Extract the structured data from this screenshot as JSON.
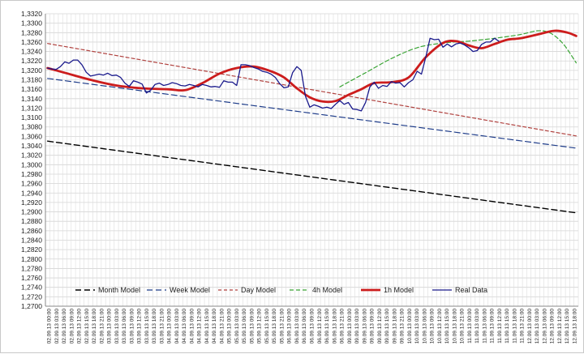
{
  "chart_data": {
    "type": "line",
    "title": "",
    "xlabel": "",
    "ylabel": "",
    "ylim": [
      1.27,
      1.332
    ],
    "ytick_step": 0.002,
    "ytick_labels": [
      "1,2700",
      "1,2720",
      "1,2740",
      "1,2760",
      "1,2780",
      "1,2800",
      "1,2820",
      "1,2840",
      "1,2860",
      "1,2880",
      "1,2900",
      "1,2920",
      "1,2940",
      "1,2960",
      "1,2980",
      "1,3000",
      "1,3020",
      "1,3040",
      "1,3060",
      "1,3080",
      "1,3100",
      "1,3120",
      "1,3140",
      "1,3160",
      "1,3180",
      "1,3200",
      "1,3220",
      "1,3240",
      "1,3260",
      "1,3280",
      "1,3300",
      "1,3320"
    ],
    "x_count": 124,
    "x_tick_labels": [
      "02.09.13 00:00",
      "02.09.13 03:00",
      "02.09.13 06:00",
      "02.09.13 09:00",
      "02.09.13 12:00",
      "02.09.13 15:00",
      "02.09.13 18:00",
      "02.09.13 21:00",
      "03.09.13 00:00",
      "03.09.13 03:00",
      "03.09.13 06:00",
      "03.09.13 09:00",
      "03.09.13 12:00",
      "03.09.13 15:00",
      "03.09.13 18:00",
      "03.09.13 21:00",
      "04.09.13 00:00",
      "04.09.13 03:00",
      "04.09.13 06:00",
      "04.09.13 09:00",
      "04.09.13 12:00",
      "04.09.13 15:00",
      "04.09.13 18:00",
      "04.09.13 21:00",
      "05.09.13 00:00",
      "05.09.13 03:00",
      "05.09.13 06:00",
      "05.09.13 09:00",
      "05.09.13 12:00",
      "05.09.13 15:00",
      "05.09.13 18:00",
      "05.09.13 21:00",
      "06.09.13 00:00",
      "06.09.13 03:00",
      "06.09.13 06:00",
      "06.09.13 09:00",
      "06.09.13 12:00",
      "06.09.13 15:00",
      "06.09.13 18:00",
      "06.09.13 21:00",
      "09.09.13 00:00",
      "09.09.13 03:00",
      "09.09.13 06:00",
      "09.09.13 09:00",
      "09.09.13 12:00",
      "09.09.13 15:00",
      "09.09.13 18:00",
      "09.09.13 21:00",
      "10.09.13 00:00",
      "10.09.13 03:00",
      "10.09.13 06:00",
      "10.09.13 09:00",
      "10.09.13 12:00",
      "10.09.13 15:00",
      "10.09.13 18:00",
      "10.09.13 21:00",
      "11.09.13 00:00",
      "11.09.13 03:00",
      "11.09.13 06:00",
      "11.09.13 09:00",
      "11.09.13 12:00",
      "11.09.13 15:00",
      "11.09.13 18:00",
      "11.09.13 21:00",
      "12.09.13 00:00",
      "12.09.13 03:00",
      "12.09.13 06:00",
      "12.09.13 09:00",
      "12.09.13 12:00",
      "12.09.13 15:00",
      "12.09.13 18:00"
    ],
    "legend_position": "bottom",
    "grid": true,
    "series": [
      {
        "name": "Month Model",
        "color": "#000000",
        "dash": "7,4",
        "width": 1.4,
        "points": [
          [
            0,
            1.305
          ],
          [
            123,
            1.2898
          ]
        ]
      },
      {
        "name": "Week Model",
        "color": "#1f3d8a",
        "dash": "7,4",
        "width": 1.2,
        "points": [
          [
            0,
            1.3183
          ],
          [
            123,
            1.3035
          ]
        ]
      },
      {
        "name": "Day Model",
        "color": "#b0413e",
        "dash": "4,3",
        "width": 1.2,
        "points": [
          [
            0,
            1.3257
          ],
          [
            123,
            1.3061
          ]
        ]
      },
      {
        "name": "4h Model",
        "color": "#3aa535",
        "dash": "5,3",
        "width": 1.2,
        "points": [
          [
            68,
            1.3165
          ],
          [
            74,
            1.3195
          ],
          [
            80,
            1.3225
          ],
          [
            86,
            1.3248
          ],
          [
            92,
            1.3258
          ],
          [
            98,
            1.3262
          ],
          [
            104,
            1.3268
          ],
          [
            110,
            1.3276
          ],
          [
            114,
            1.3284
          ],
          [
            117,
            1.3279
          ],
          [
            120,
            1.3256
          ],
          [
            123,
            1.3216
          ]
        ]
      },
      {
        "name": "1h Model",
        "color": "#cc1c1c",
        "dash": "",
        "width": 2.8,
        "points": [
          [
            0,
            1.3205
          ],
          [
            4,
            1.3195
          ],
          [
            10,
            1.318
          ],
          [
            16,
            1.3168
          ],
          [
            22,
            1.3162
          ],
          [
            28,
            1.316
          ],
          [
            32,
            1.3158
          ],
          [
            36,
            1.3173
          ],
          [
            40,
            1.3193
          ],
          [
            44,
            1.3205
          ],
          [
            48,
            1.3208
          ],
          [
            52,
            1.3198
          ],
          [
            55,
            1.3185
          ],
          [
            58,
            1.3162
          ],
          [
            61,
            1.3143
          ],
          [
            64,
            1.3134
          ],
          [
            67,
            1.3135
          ],
          [
            70,
            1.3148
          ],
          [
            73,
            1.316
          ],
          [
            76,
            1.3173
          ],
          [
            80,
            1.3175
          ],
          [
            84,
            1.3185
          ],
          [
            88,
            1.3228
          ],
          [
            92,
            1.3258
          ],
          [
            95,
            1.3262
          ],
          [
            98,
            1.3253
          ],
          [
            101,
            1.3247
          ],
          [
            104,
            1.3256
          ],
          [
            107,
            1.3265
          ],
          [
            110,
            1.3268
          ],
          [
            114,
            1.3276
          ],
          [
            118,
            1.3284
          ],
          [
            121,
            1.328
          ],
          [
            123,
            1.3273
          ]
        ]
      },
      {
        "name": "Real Data",
        "color": "#1a1a8c",
        "dash": "",
        "width": 1.3,
        "points": [
          [
            0,
            1.3205
          ],
          [
            1,
            1.3203
          ],
          [
            2,
            1.3202
          ],
          [
            3,
            1.3208
          ],
          [
            4,
            1.3218
          ],
          [
            5,
            1.3215
          ],
          [
            6,
            1.3222
          ],
          [
            7,
            1.3222
          ],
          [
            8,
            1.3212
          ],
          [
            9,
            1.3196
          ],
          [
            10,
            1.3188
          ],
          [
            11,
            1.319
          ],
          [
            12,
            1.3192
          ],
          [
            13,
            1.319
          ],
          [
            14,
            1.3194
          ],
          [
            15,
            1.3189
          ],
          [
            16,
            1.319
          ],
          [
            17,
            1.3185
          ],
          [
            18,
            1.3173
          ],
          [
            19,
            1.3166
          ],
          [
            20,
            1.3178
          ],
          [
            21,
            1.3175
          ],
          [
            22,
            1.3171
          ],
          [
            23,
            1.3152
          ],
          [
            24,
            1.3158
          ],
          [
            25,
            1.317
          ],
          [
            26,
            1.3173
          ],
          [
            27,
            1.3168
          ],
          [
            28,
            1.317
          ],
          [
            29,
            1.3174
          ],
          [
            30,
            1.3172
          ],
          [
            31,
            1.3168
          ],
          [
            32,
            1.3167
          ],
          [
            33,
            1.317
          ],
          [
            34,
            1.3168
          ],
          [
            35,
            1.3165
          ],
          [
            36,
            1.317
          ],
          [
            37,
            1.3168
          ],
          [
            38,
            1.3165
          ],
          [
            39,
            1.3166
          ],
          [
            40,
            1.3164
          ],
          [
            41,
            1.3178
          ],
          [
            42,
            1.3175
          ],
          [
            43,
            1.3175
          ],
          [
            44,
            1.3168
          ],
          [
            45,
            1.3212
          ],
          [
            46,
            1.3212
          ],
          [
            47,
            1.321
          ],
          [
            48,
            1.3206
          ],
          [
            49,
            1.3203
          ],
          [
            50,
            1.3198
          ],
          [
            51,
            1.3196
          ],
          [
            52,
            1.3192
          ],
          [
            53,
            1.3185
          ],
          [
            54,
            1.3172
          ],
          [
            55,
            1.3163
          ],
          [
            56,
            1.3165
          ],
          [
            57,
            1.3195
          ],
          [
            58,
            1.3208
          ],
          [
            59,
            1.32
          ],
          [
            60,
            1.3145
          ],
          [
            61,
            1.3122
          ],
          [
            62,
            1.3127
          ],
          [
            63,
            1.3124
          ],
          [
            64,
            1.312
          ],
          [
            65,
            1.3122
          ],
          [
            66,
            1.3119
          ],
          [
            67,
            1.3128
          ],
          [
            68,
            1.3136
          ],
          [
            69,
            1.3128
          ],
          [
            70,
            1.3132
          ],
          [
            71,
            1.3118
          ],
          [
            72,
            1.3117
          ],
          [
            73,
            1.3114
          ],
          [
            74,
            1.3132
          ],
          [
            75,
            1.3165
          ],
          [
            76,
            1.3175
          ],
          [
            77,
            1.3162
          ],
          [
            78,
            1.3168
          ],
          [
            79,
            1.3166
          ],
          [
            80,
            1.3176
          ],
          [
            81,
            1.3173
          ],
          [
            82,
            1.3174
          ],
          [
            83,
            1.3165
          ],
          [
            84,
            1.3174
          ],
          [
            85,
            1.318
          ],
          [
            86,
            1.3198
          ],
          [
            87,
            1.3192
          ],
          [
            88,
            1.3228
          ],
          [
            89,
            1.3268
          ],
          [
            90,
            1.3265
          ],
          [
            91,
            1.3266
          ],
          [
            92,
            1.3249
          ],
          [
            93,
            1.3256
          ],
          [
            94,
            1.325
          ],
          [
            95,
            1.3256
          ],
          [
            96,
            1.3258
          ],
          [
            97,
            1.3254
          ],
          [
            98,
            1.3248
          ],
          [
            99,
            1.324
          ],
          [
            100,
            1.3242
          ],
          [
            101,
            1.3255
          ],
          [
            102,
            1.326
          ],
          [
            103,
            1.326
          ],
          [
            104,
            1.3268
          ],
          [
            105,
            1.3262
          ]
        ]
      }
    ]
  }
}
